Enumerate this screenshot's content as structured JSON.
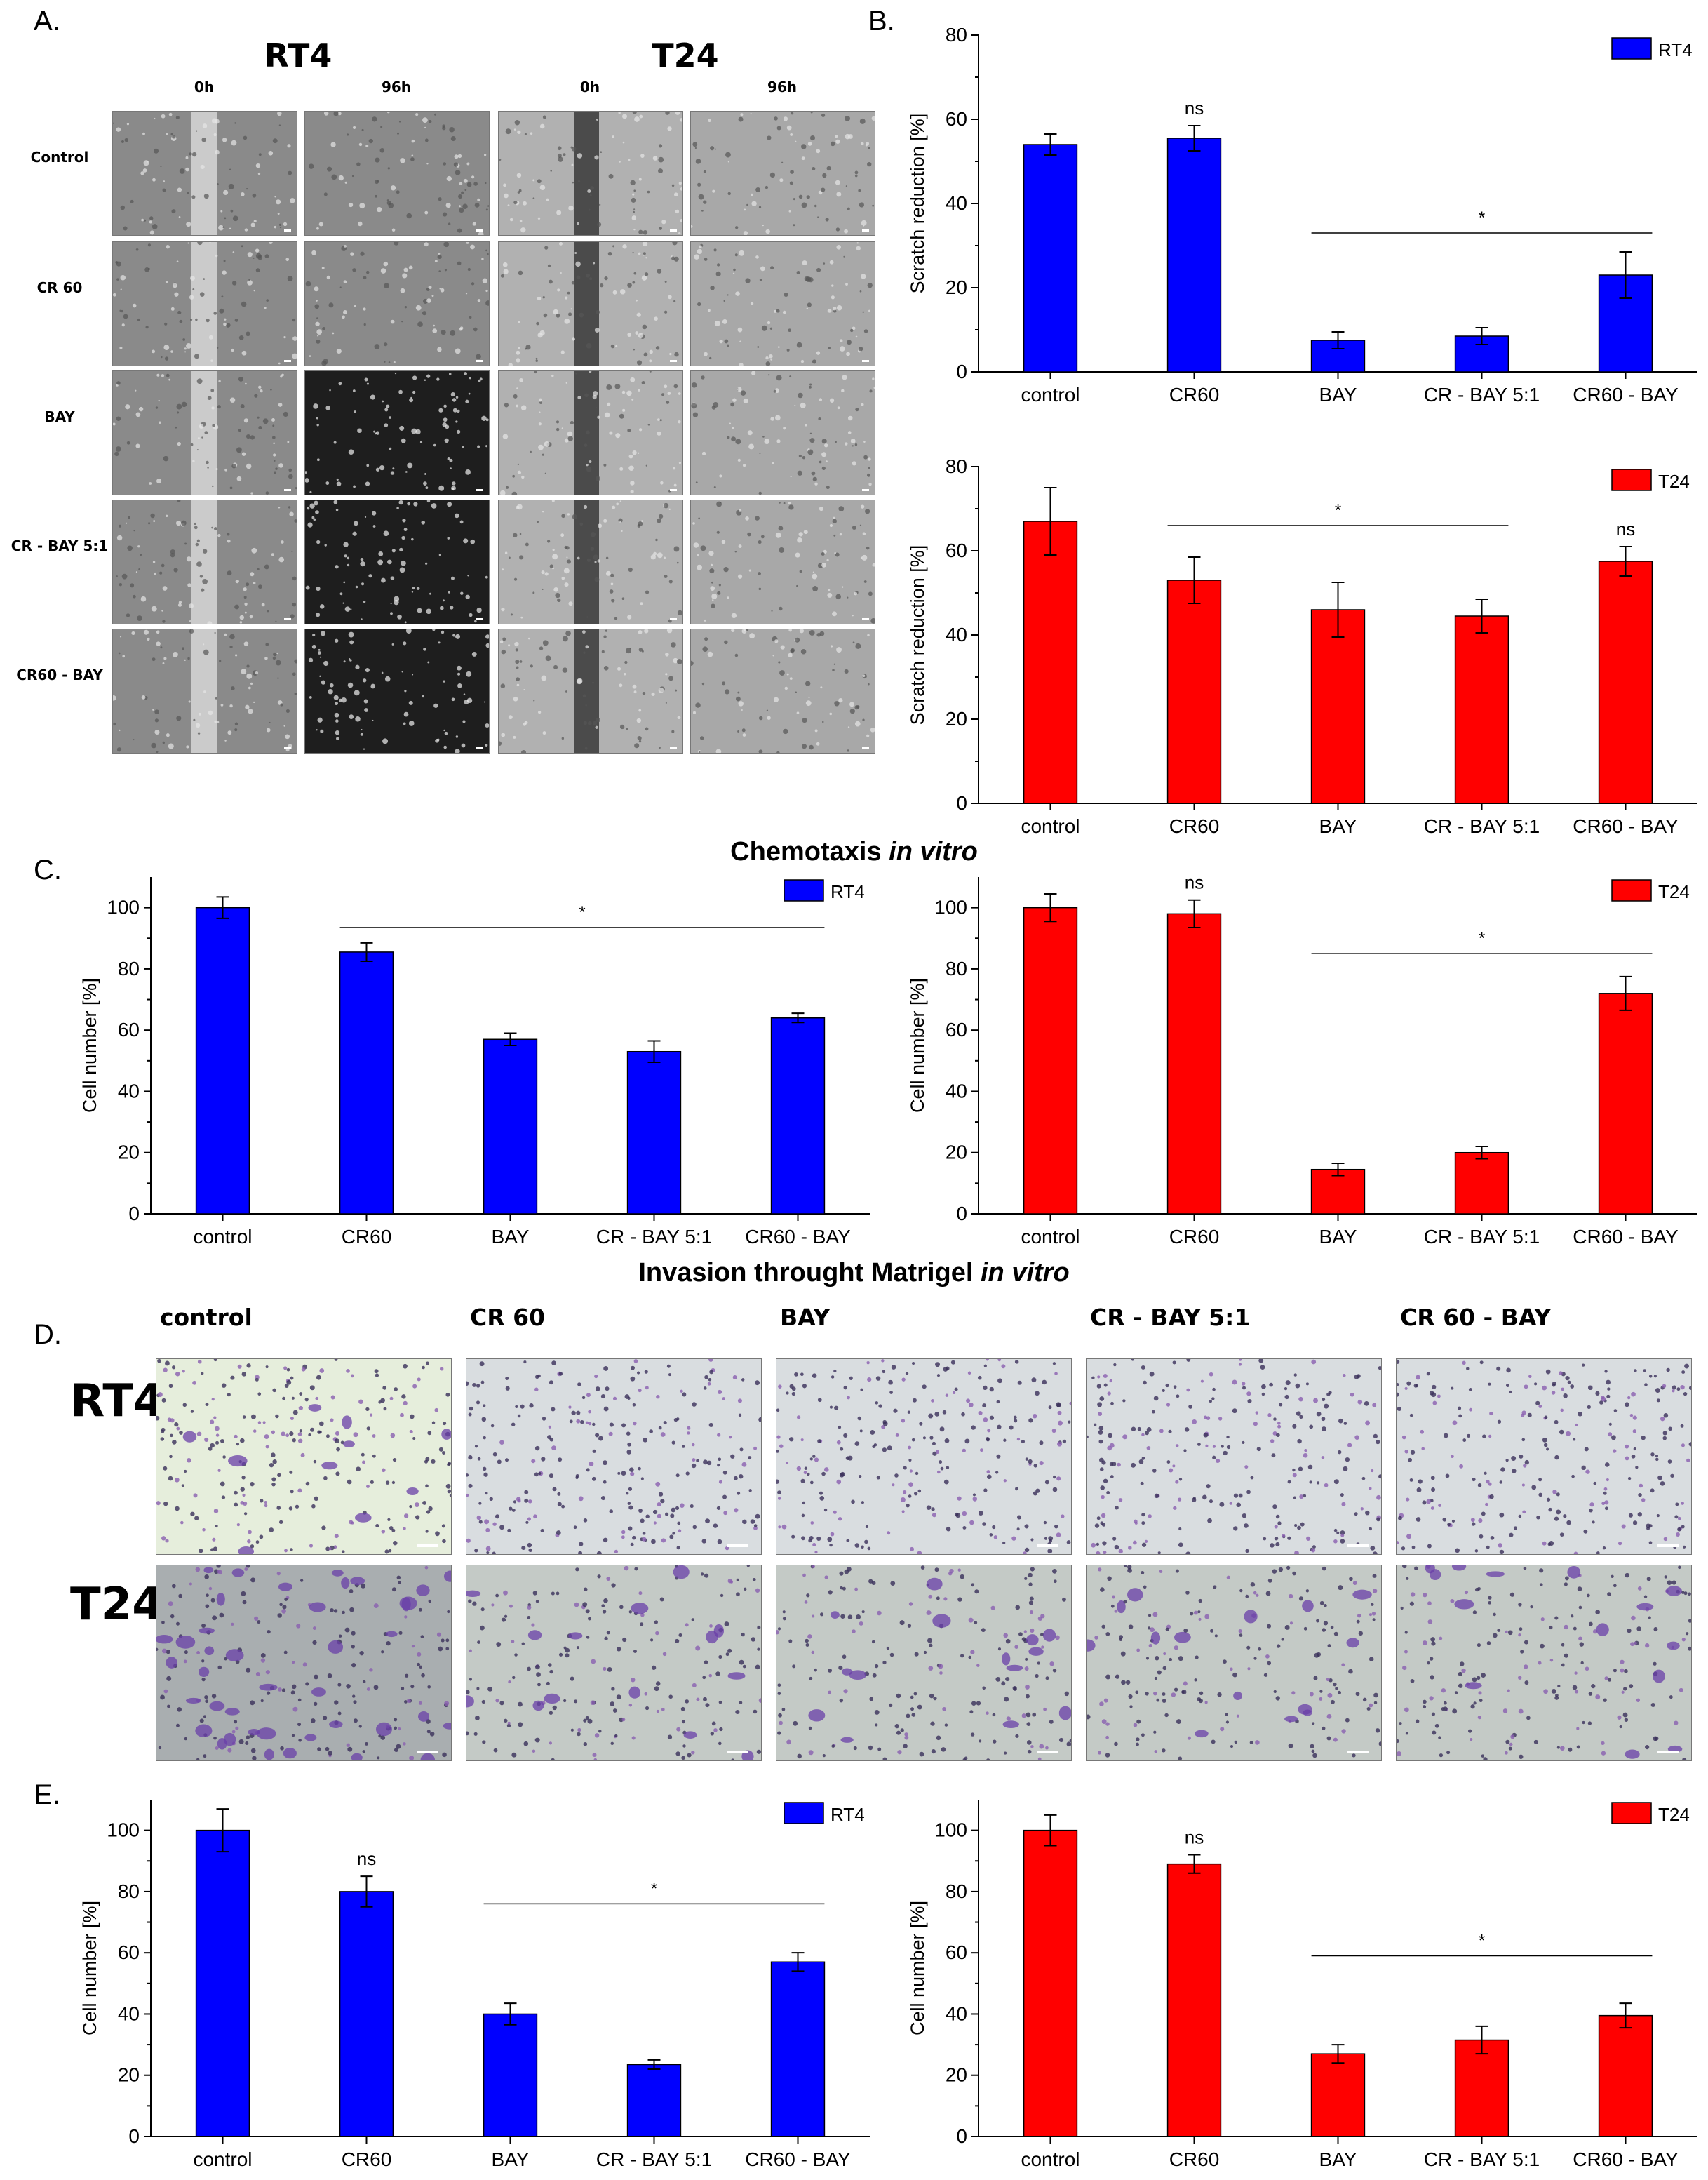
{
  "panel_labels": {
    "a": "A.",
    "b": "B.",
    "c": "C.",
    "d": "D.",
    "e": "E."
  },
  "panel_a": {
    "cell_lines": [
      "RT4",
      "T24"
    ],
    "timepoints": [
      "0h",
      "96h",
      "0h",
      "96h"
    ],
    "rows": [
      "Control",
      "CR 60",
      "BAY",
      "CR - BAY 5:1",
      "CR60 - BAY"
    ]
  },
  "titles": {
    "chemotaxis": "Chemotaxis",
    "invasion": "Invasion throught Matrigel",
    "in_vitro": "in vitro"
  },
  "panel_d": {
    "columns": [
      "control",
      "CR 60",
      "BAY",
      "CR - BAY 5:1",
      "CR 60 - BAY"
    ],
    "rows": [
      "RT4",
      "T24"
    ]
  },
  "colors": {
    "rt4": "#0000ff",
    "t24": "#ff0000"
  },
  "chart_data": [
    {
      "id": "b1",
      "type": "bar",
      "panel": "B",
      "legend": "RT4",
      "color": "#0000ff",
      "ylabel": "Scratch reduction [%]",
      "ylim": [
        0,
        80
      ],
      "yticks": [
        0,
        20,
        40,
        60,
        80
      ],
      "categories": [
        "control",
        "CR60",
        "BAY",
        "CR - BAY 5:1",
        "CR60 - BAY"
      ],
      "values": [
        54,
        55.5,
        7.5,
        8.5,
        23
      ],
      "errors": [
        2.5,
        3,
        2,
        2,
        5.5
      ],
      "annotations": [
        {
          "text": "ns",
          "index": 1
        }
      ],
      "significance": {
        "text": "*",
        "from": 2,
        "to": 4,
        "y": 33
      }
    },
    {
      "id": "b2",
      "type": "bar",
      "panel": "B",
      "legend": "T24",
      "color": "#ff0000",
      "ylabel": "Scratch reduction [%]",
      "ylim": [
        0,
        80
      ],
      "yticks": [
        0,
        20,
        40,
        60,
        80
      ],
      "categories": [
        "control",
        "CR60",
        "BAY",
        "CR - BAY 5:1",
        "CR60 - BAY"
      ],
      "values": [
        67,
        53,
        46,
        44.5,
        57.5
      ],
      "errors": [
        8,
        5.5,
        6.5,
        4,
        3.5
      ],
      "annotations": [
        {
          "text": "ns",
          "index": 4
        }
      ],
      "significance": {
        "text": "*",
        "from": 1,
        "to": 3,
        "y": 66
      }
    },
    {
      "id": "c1",
      "type": "bar",
      "panel": "C",
      "legend": "RT4",
      "color": "#0000ff",
      "ylabel": "Cell number [%]",
      "ylim": [
        0,
        110
      ],
      "yticks": [
        0,
        20,
        40,
        60,
        80,
        100
      ],
      "categories": [
        "control",
        "CR60",
        "BAY",
        "CR - BAY 5:1",
        "CR60 - BAY"
      ],
      "values": [
        100,
        85.5,
        57,
        53,
        64
      ],
      "errors": [
        3.5,
        3,
        2,
        3.5,
        1.5
      ],
      "annotations": [],
      "significance": {
        "text": "*",
        "from": 1,
        "to": 4,
        "y": 93.5
      }
    },
    {
      "id": "c2",
      "type": "bar",
      "panel": "C",
      "legend": "T24",
      "color": "#ff0000",
      "ylabel": "Cell number [%]",
      "ylim": [
        0,
        110
      ],
      "yticks": [
        0,
        20,
        40,
        60,
        80,
        100
      ],
      "categories": [
        "control",
        "CR60",
        "BAY",
        "CR - BAY 5:1",
        "CR60 - BAY"
      ],
      "values": [
        100,
        98,
        14.5,
        20,
        72
      ],
      "errors": [
        4.5,
        4.5,
        2,
        2,
        5.5
      ],
      "annotations": [
        {
          "text": "ns",
          "index": 1
        }
      ],
      "significance": {
        "text": "*",
        "from": 2,
        "to": 4,
        "y": 85
      }
    },
    {
      "id": "e1",
      "type": "bar",
      "panel": "E",
      "legend": "RT4",
      "color": "#0000ff",
      "ylabel": "Cell number [%]",
      "ylim": [
        0,
        110
      ],
      "yticks": [
        0,
        20,
        40,
        60,
        80,
        100
      ],
      "categories": [
        "control",
        "CR60",
        "BAY",
        "CR - BAY 5:1",
        "CR60 - BAY"
      ],
      "values": [
        100,
        80,
        40,
        23.5,
        57
      ],
      "errors": [
        7,
        5,
        3.5,
        1.5,
        3
      ],
      "annotations": [
        {
          "text": "ns",
          "index": 1
        }
      ],
      "significance": {
        "text": "*",
        "from": 2,
        "to": 4,
        "y": 76
      }
    },
    {
      "id": "e2",
      "type": "bar",
      "panel": "E",
      "legend": "T24",
      "color": "#ff0000",
      "ylabel": "Cell number [%]",
      "ylim": [
        0,
        110
      ],
      "yticks": [
        0,
        20,
        40,
        60,
        80,
        100
      ],
      "categories": [
        "control",
        "CR60",
        "BAY",
        "CR - BAY 5:1",
        "CR60 - BAY"
      ],
      "values": [
        100,
        89,
        27,
        31.5,
        39.5
      ],
      "errors": [
        5,
        3,
        3,
        4.5,
        4
      ],
      "annotations": [
        {
          "text": "ns",
          "index": 1
        }
      ],
      "significance": {
        "text": "*",
        "from": 2,
        "to": 4,
        "y": 59
      }
    }
  ]
}
